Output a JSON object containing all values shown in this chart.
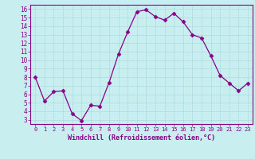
{
  "x": [
    0,
    1,
    2,
    3,
    4,
    5,
    6,
    7,
    8,
    9,
    10,
    11,
    12,
    13,
    14,
    15,
    16,
    17,
    18,
    19,
    20,
    21,
    22,
    23
  ],
  "y": [
    8.0,
    5.2,
    6.3,
    6.4,
    3.7,
    2.9,
    4.7,
    4.6,
    7.4,
    10.7,
    13.3,
    15.7,
    15.9,
    15.1,
    14.7,
    15.5,
    14.5,
    13.0,
    12.6,
    10.5,
    8.2,
    7.3,
    6.4,
    7.3
  ],
  "line_color": "#880088",
  "marker": "D",
  "marker_size": 2.5,
  "bg_color": "#c8eef0",
  "grid_color": "#aadddd",
  "tick_color": "#880088",
  "label_color": "#880088",
  "xlabel": "Windchill (Refroidissement éolien,°C)",
  "xlim": [
    -0.5,
    23.5
  ],
  "ylim": [
    2.5,
    16.5
  ],
  "yticks": [
    3,
    4,
    5,
    6,
    7,
    8,
    9,
    10,
    11,
    12,
    13,
    14,
    15,
    16
  ],
  "xticks": [
    0,
    1,
    2,
    3,
    4,
    5,
    6,
    7,
    8,
    9,
    10,
    11,
    12,
    13,
    14,
    15,
    16,
    17,
    18,
    19,
    20,
    21,
    22,
    23
  ],
  "spine_color": "#880088",
  "axis_bg_color": "#c8eef0"
}
